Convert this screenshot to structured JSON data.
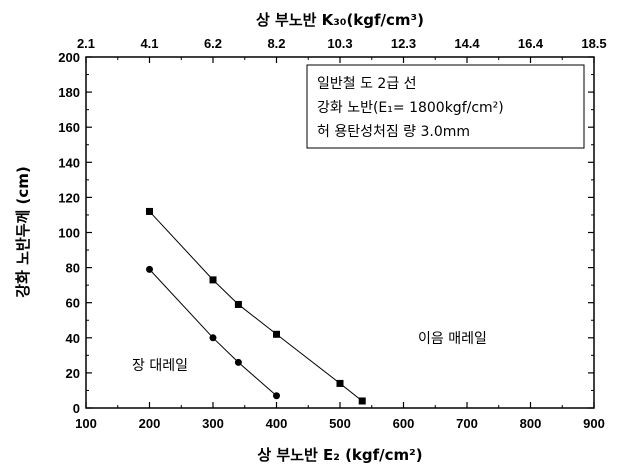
{
  "chart_data": {
    "type": "line",
    "xlabel": "상 부노반 E₂ (kgf/cm²)",
    "top_xlabel": "상 부노반 K₃₀(kgf/cm³)",
    "ylabel": "강화 노반두께 (cm)",
    "xlim": [
      100,
      900
    ],
    "ylim": [
      0,
      200
    ],
    "x_ticks": [
      "100",
      "200",
      "300",
      "400",
      "500",
      "600",
      "700",
      "800",
      "900"
    ],
    "y_ticks": [
      "0",
      "20",
      "40",
      "60",
      "80",
      "100",
      "120",
      "140",
      "160",
      "180",
      "200"
    ],
    "top_ticks": [
      "2.1",
      "4.1",
      "6.2",
      "8.2",
      "10.3",
      "12.3",
      "14.4",
      "16.4",
      "18.5"
    ],
    "grid": false,
    "series": [
      {
        "name": "이음 매레일",
        "marker": "square",
        "color": "#000000",
        "x": [
          200,
          300,
          340,
          400,
          500,
          535
        ],
        "y": [
          112,
          73,
          59,
          42,
          14,
          4
        ]
      },
      {
        "name": "장 대레일",
        "marker": "circle",
        "color": "#000000",
        "x": [
          200,
          300,
          340,
          400
        ],
        "y": [
          79,
          40,
          26,
          7
        ]
      }
    ],
    "legend_box": [
      "일반철 도 2급 선",
      "강화 노반(E₁= 1800kgf/cm²)",
      "허 용탄성처짐 량 3.0mm"
    ]
  }
}
